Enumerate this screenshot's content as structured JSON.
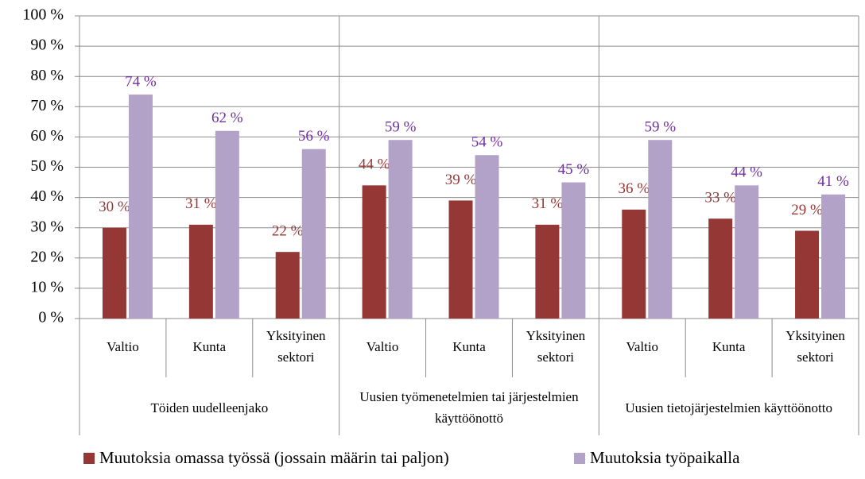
{
  "chart_data": {
    "type": "bar",
    "groups": [
      "Töiden uudelleenjako",
      "Uusien työmenetelmien tai järjestelmien käyttöönottö",
      "Uusien tietojärjestelmien käyttöönotto"
    ],
    "categories": [
      "Valtio",
      "Kunta",
      "Yksityinen sektori",
      "Valtio",
      "Kunta",
      "Yksityinen sektori",
      "Valtio",
      "Kunta",
      "Yksityinen sektori"
    ],
    "series": [
      {
        "name": "Muutoksia omassa työssä (jossain määrin tai paljon)",
        "color": "#953735",
        "label_color": "#953735",
        "values": [
          30,
          31,
          22,
          44,
          39,
          31,
          36,
          33,
          29
        ],
        "value_labels": [
          "30 %",
          "31 %",
          "22 %",
          "44 %",
          "39 %",
          "31 %",
          "36 %",
          "33 %",
          "29 %"
        ]
      },
      {
        "name": "Muutoksia työpaikalla",
        "color": "#b3a2c7",
        "label_color": "#7030a0",
        "values": [
          74,
          62,
          56,
          59,
          54,
          45,
          59,
          44,
          41
        ],
        "value_labels": [
          "74 %",
          "62 %",
          "56 %",
          "59 %",
          "54 %",
          "45 %",
          "59 %",
          "44 %",
          "41 %"
        ]
      }
    ],
    "ylim": [
      0,
      100
    ],
    "yticks": [
      {
        "value": 0,
        "label": "0 %"
      },
      {
        "value": 10,
        "label": "10 %"
      },
      {
        "value": 20,
        "label": "20 %"
      },
      {
        "value": 30,
        "label": "30 %"
      },
      {
        "value": 40,
        "label": "40 %"
      },
      {
        "value": 50,
        "label": "50 %"
      },
      {
        "value": 60,
        "label": "60 %"
      },
      {
        "value": 70,
        "label": "70 %"
      },
      {
        "value": 80,
        "label": "80 %"
      },
      {
        "value": 90,
        "label": "90 %"
      },
      {
        "value": 100,
        "label": "100 %"
      }
    ],
    "grid": true,
    "legend": "bottom"
  }
}
